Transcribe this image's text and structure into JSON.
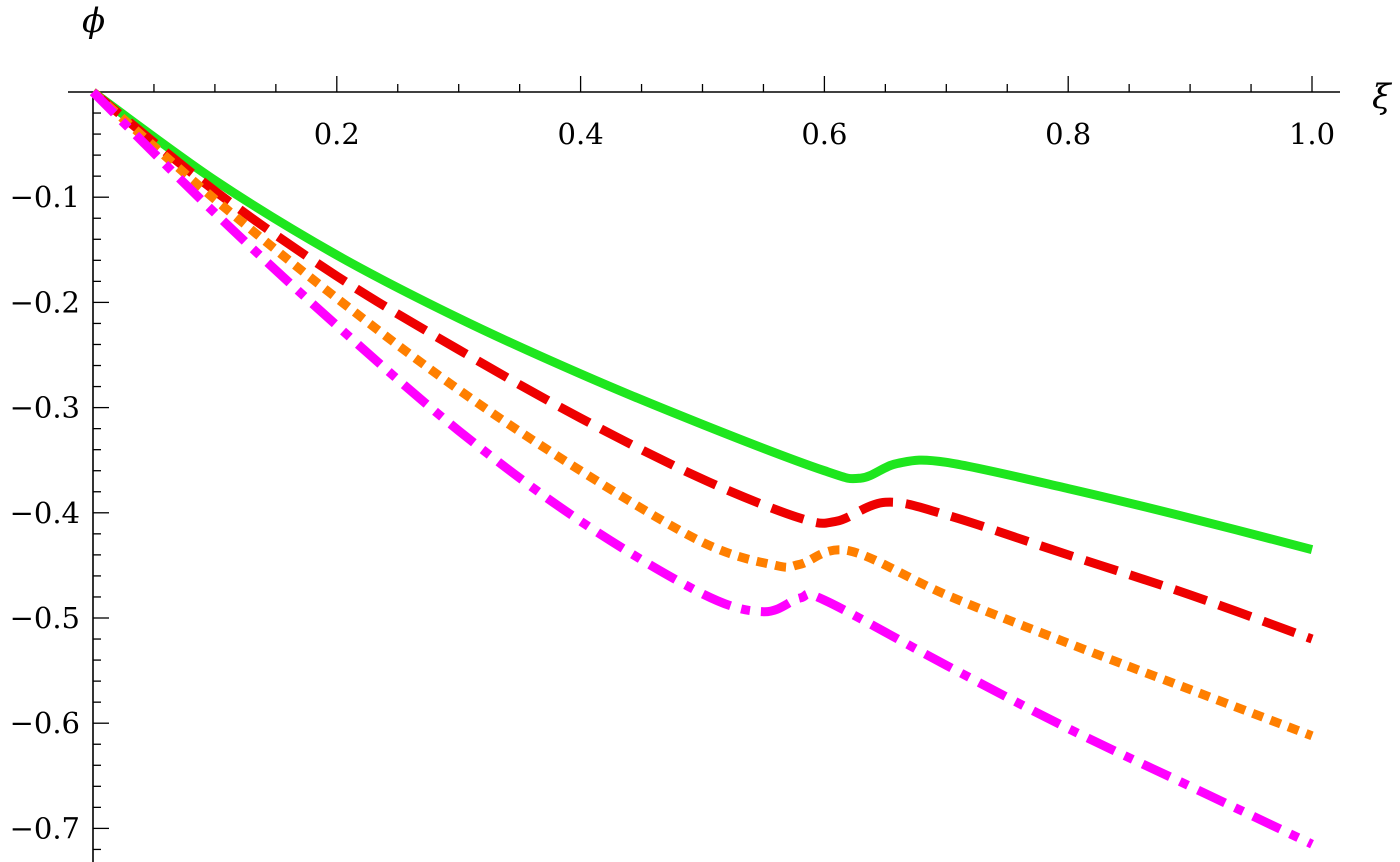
{
  "chart_data": {
    "type": "line",
    "xlabel": "ξ",
    "ylabel": "ϕ",
    "xlim": [
      0,
      1.0
    ],
    "ylim": [
      -0.73,
      0
    ],
    "x_ticks": [
      0.2,
      0.4,
      0.6,
      0.8,
      1.0
    ],
    "x_tick_labels": [
      "0.2",
      "0.4",
      "0.6",
      "0.8",
      "1.0"
    ],
    "y_ticks": [
      -0.1,
      -0.2,
      -0.3,
      -0.4,
      -0.5,
      -0.6,
      -0.7
    ],
    "y_tick_labels": [
      "−0.1",
      "−0.2",
      "−0.3",
      "−0.4",
      "−0.5",
      "−0.6",
      "−0.7"
    ],
    "grid": false,
    "legend": "none",
    "series": [
      {
        "style": "solid",
        "color": "#1ee61e",
        "x": [
          0,
          0.1,
          0.2,
          0.3,
          0.4,
          0.5,
          0.6,
          0.63,
          0.66,
          0.7,
          0.8,
          0.9,
          1.0
        ],
        "y": [
          0,
          -0.084,
          -0.155,
          -0.215,
          -0.268,
          -0.316,
          -0.36,
          -0.367,
          -0.353,
          -0.352,
          -0.377,
          -0.405,
          -0.435
        ]
      },
      {
        "style": "dashed",
        "color": "#ee0000",
        "x": [
          0,
          0.1,
          0.2,
          0.3,
          0.4,
          0.5,
          0.58,
          0.61,
          0.65,
          0.7,
          0.8,
          0.9,
          1.0
        ],
        "y": [
          0,
          -0.094,
          -0.175,
          -0.245,
          -0.31,
          -0.368,
          -0.405,
          -0.408,
          -0.39,
          -0.402,
          -0.44,
          -0.478,
          -0.52
        ]
      },
      {
        "style": "dotted",
        "color": "#ff7f00",
        "x": [
          0,
          0.1,
          0.2,
          0.3,
          0.4,
          0.5,
          0.56,
          0.58,
          0.62,
          0.7,
          0.8,
          0.9,
          1.0
        ],
        "y": [
          0,
          -0.102,
          -0.196,
          -0.283,
          -0.36,
          -0.428,
          -0.45,
          -0.449,
          -0.436,
          -0.478,
          -0.524,
          -0.568,
          -0.612
        ]
      },
      {
        "style": "dash-dot",
        "color": "#ff00ff",
        "x": [
          0,
          0.1,
          0.2,
          0.3,
          0.4,
          0.5,
          0.55,
          0.58,
          0.6,
          0.7,
          0.8,
          0.9,
          1.0
        ],
        "y": [
          0,
          -0.115,
          -0.222,
          -0.322,
          -0.408,
          -0.477,
          -0.494,
          -0.481,
          -0.483,
          -0.545,
          -0.605,
          -0.66,
          -0.715
        ]
      }
    ]
  }
}
